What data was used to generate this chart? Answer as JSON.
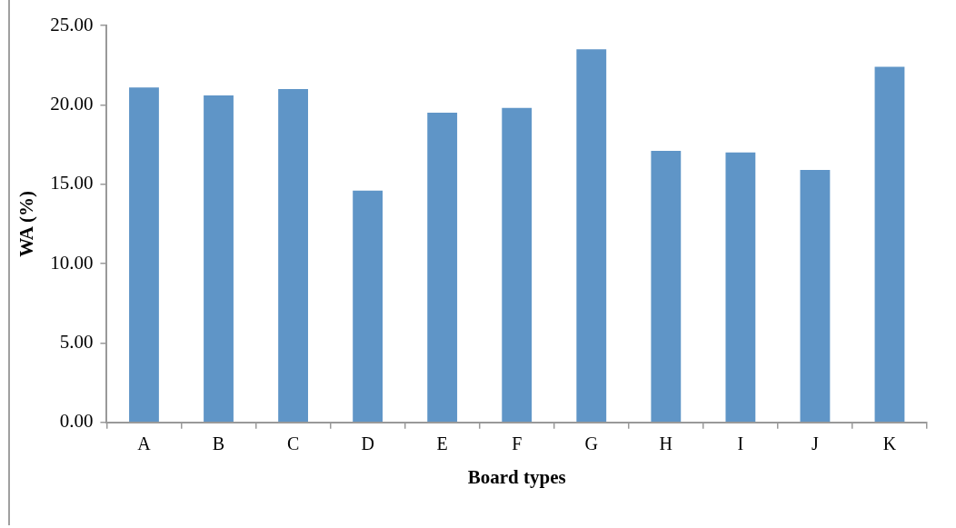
{
  "chart_data": {
    "type": "bar",
    "xlabel": "Board types",
    "ylabel": "WA (%)",
    "categories": [
      "A",
      "B",
      "C",
      "D",
      "E",
      "F",
      "G",
      "H",
      "I",
      "J",
      "K"
    ],
    "values": [
      21.1,
      20.6,
      21.0,
      14.6,
      19.5,
      19.8,
      23.5,
      17.1,
      17.0,
      15.9,
      22.4
    ],
    "color": "#5f95c7",
    "ylim": [
      0,
      25
    ],
    "yticks": [
      {
        "value": 0,
        "label": "0.00"
      },
      {
        "value": 5,
        "label": "5.00"
      },
      {
        "value": 10,
        "label": "10.00"
      },
      {
        "value": 15,
        "label": "15.00"
      },
      {
        "value": 20,
        "label": "20.00"
      },
      {
        "value": 25,
        "label": "25.00"
      }
    ],
    "grid": false,
    "legend": false
  }
}
